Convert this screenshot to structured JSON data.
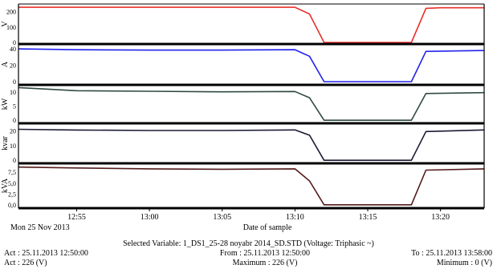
{
  "chart_data": {
    "type": "line",
    "x_axis": {
      "label": "Date of sample",
      "date_label": "Mon 25 Nov 2013",
      "ticks": [
        "12:55",
        "13:00",
        "13:05",
        "13:10",
        "13:15",
        "13:20"
      ],
      "range": [
        "12:51",
        "13:23"
      ]
    },
    "panels": [
      {
        "ylabel": "V",
        "yticks": [
          "0",
          "100",
          "200"
        ],
        "ylim": [
          0,
          240
        ],
        "color": "#e8312a",
        "series": [
          {
            "t": "12:51",
            "v": 229
          },
          {
            "t": "13:10",
            "v": 229
          },
          {
            "t": "13:11",
            "v": 185
          },
          {
            "t": "13:12",
            "v": 0
          },
          {
            "t": "13:18",
            "v": 0
          },
          {
            "t": "13:19",
            "v": 222
          },
          {
            "t": "13:20",
            "v": 226
          },
          {
            "t": "13:23",
            "v": 226
          }
        ]
      },
      {
        "ylabel": "A",
        "yticks": [
          "0",
          "20",
          "40"
        ],
        "ylim": [
          -2,
          44
        ],
        "color": "#2222ee",
        "series": [
          {
            "t": "12:51",
            "v": 40
          },
          {
            "t": "12:55",
            "v": 39
          },
          {
            "t": "13:00",
            "v": 38.5
          },
          {
            "t": "13:05",
            "v": 38.5
          },
          {
            "t": "13:10",
            "v": 39
          },
          {
            "t": "13:11",
            "v": 31
          },
          {
            "t": "13:12",
            "v": 0
          },
          {
            "t": "13:18",
            "v": 0
          },
          {
            "t": "13:19",
            "v": 37
          },
          {
            "t": "13:23",
            "v": 38
          }
        ]
      },
      {
        "ylabel": "kW",
        "yticks": [
          "0",
          "5",
          "10"
        ],
        "ylim": [
          -0.5,
          12
        ],
        "color": "#2f4a44",
        "series": [
          {
            "t": "12:51",
            "v": 11.6
          },
          {
            "t": "12:55",
            "v": 10.5
          },
          {
            "t": "13:00",
            "v": 10.3
          },
          {
            "t": "13:05",
            "v": 10.1
          },
          {
            "t": "13:10",
            "v": 10.2
          },
          {
            "t": "13:11",
            "v": 8.0
          },
          {
            "t": "13:12",
            "v": 0
          },
          {
            "t": "13:18",
            "v": 0
          },
          {
            "t": "13:19",
            "v": 9.5
          },
          {
            "t": "13:23",
            "v": 9.8
          }
        ]
      },
      {
        "ylabel": "kvar",
        "yticks": [
          "0",
          "10",
          "20"
        ],
        "ylim": [
          -1,
          24
        ],
        "color": "#1a1a33",
        "series": [
          {
            "t": "12:51",
            "v": 21
          },
          {
            "t": "12:55",
            "v": 20.5
          },
          {
            "t": "13:00",
            "v": 20.2
          },
          {
            "t": "13:05",
            "v": 20.2
          },
          {
            "t": "13:10",
            "v": 20.6
          },
          {
            "t": "13:11",
            "v": 17
          },
          {
            "t": "13:12",
            "v": 0
          },
          {
            "t": "13:18",
            "v": 0
          },
          {
            "t": "13:19",
            "v": 19.5
          },
          {
            "t": "13:23",
            "v": 20.6
          }
        ]
      },
      {
        "ylabel": "kVA",
        "yticks": [
          "0,0",
          "2,5",
          "5,0",
          "7,5"
        ],
        "ylim": [
          -0.4,
          9.2
        ],
        "color": "#551a1a",
        "series": [
          {
            "t": "12:51",
            "v": 8.7
          },
          {
            "t": "12:55",
            "v": 8.5
          },
          {
            "t": "13:00",
            "v": 8.3
          },
          {
            "t": "13:05",
            "v": 8.2
          },
          {
            "t": "13:10",
            "v": 8.3
          },
          {
            "t": "13:11",
            "v": 5.5
          },
          {
            "t": "13:12",
            "v": 0
          },
          {
            "t": "13:18",
            "v": 0
          },
          {
            "t": "13:19",
            "v": 8.0
          },
          {
            "t": "13:23",
            "v": 8.3
          }
        ]
      }
    ]
  },
  "footer": {
    "selected_variable": "Selected Variable: 1_DS1_25-28 noyabr 2014_SD.STD (Voltage: Triphasic ~)",
    "act_date": "Act : 25.11.2013 12:50:00",
    "from": "From : 25.11.2013 12:50:00",
    "to": "To : 25.11.2013 13:58:00",
    "act_value": "Act : 226 (V)",
    "maximum": "Maximum : 226 (V)",
    "minimum": "Minimum : 0 (V)"
  }
}
